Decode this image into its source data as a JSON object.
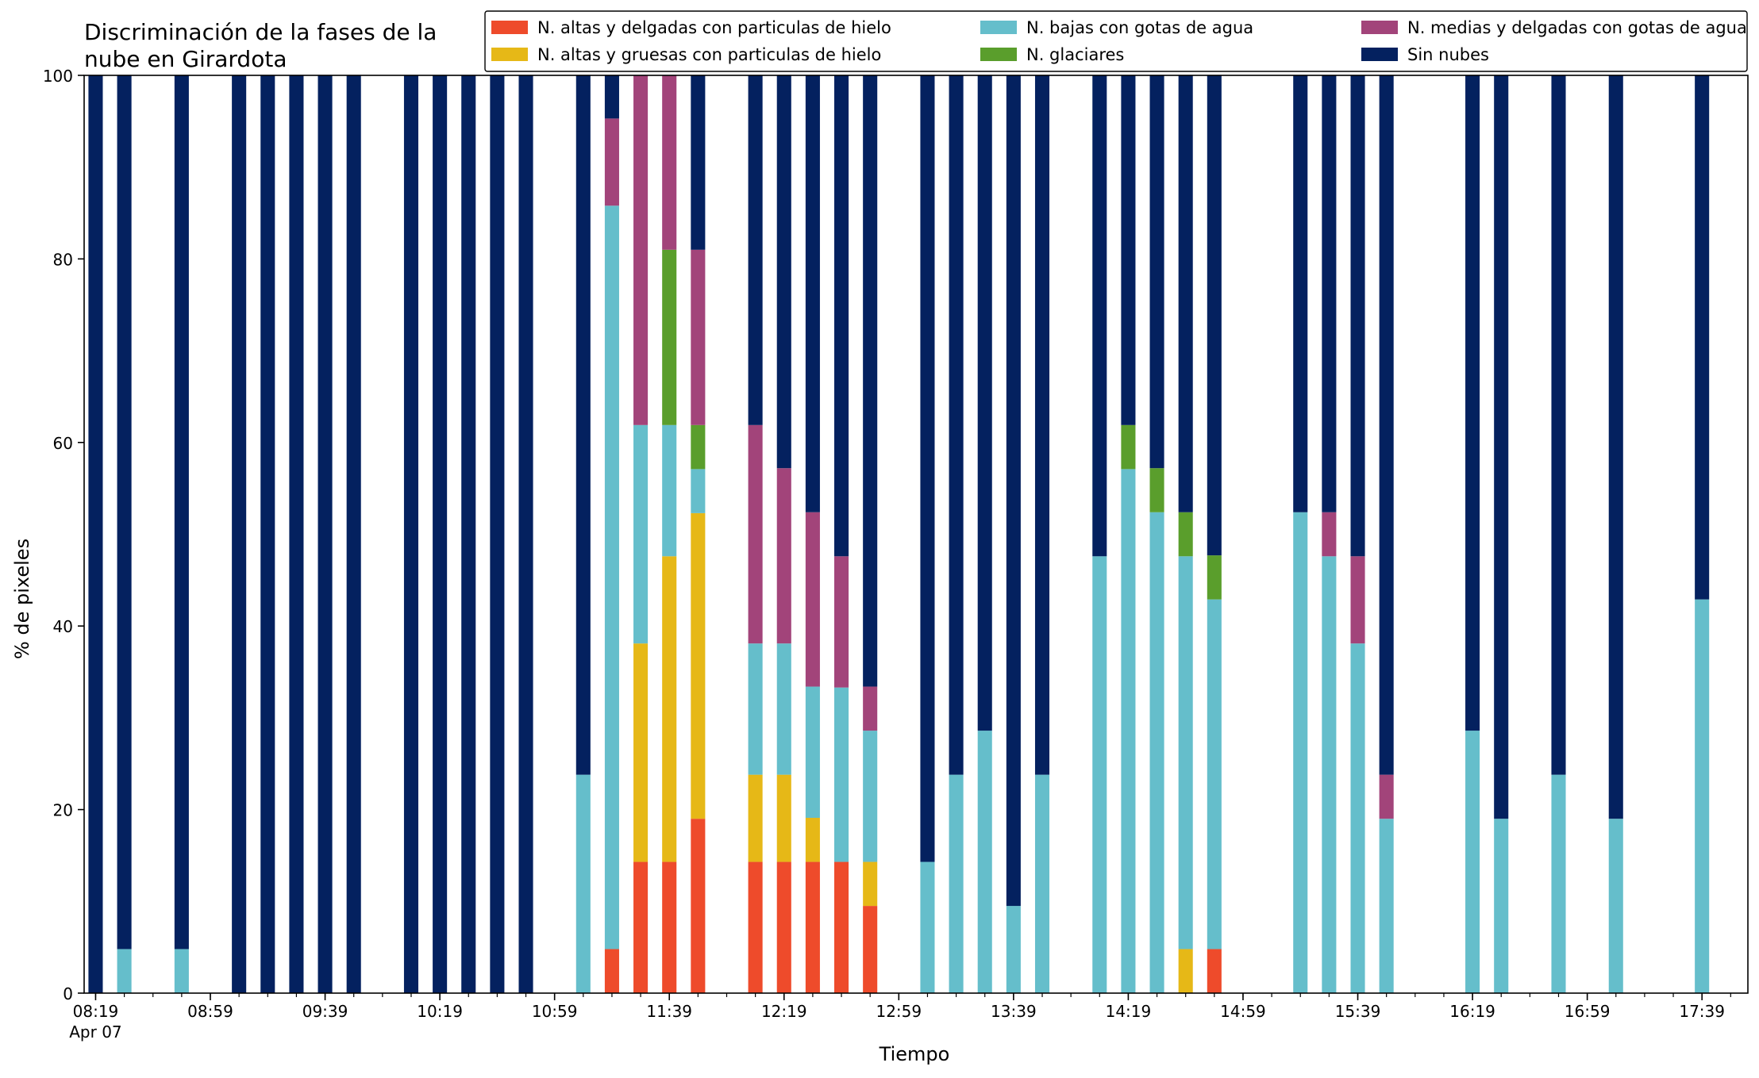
{
  "chart_data": {
    "type": "bar",
    "stacked": true,
    "title": "Discriminación de la fases de la\nnube en Girardota",
    "xlabel": "Tiempo",
    "ylabel": "% de pixeles",
    "ylim": [
      0,
      100
    ],
    "yticks": [
      0,
      20,
      40,
      60,
      80,
      100
    ],
    "xlim": [
      "08:15",
      "17:55"
    ],
    "date_label": "Apr 07",
    "major_ticks": [
      "08:19",
      "08:59",
      "09:39",
      "10:19",
      "10:59",
      "11:39",
      "12:19",
      "12:59",
      "13:39",
      "14:19",
      "14:59",
      "15:39",
      "16:19",
      "16:59",
      "17:39"
    ],
    "minor_tick_step_minutes": 10,
    "legend_position": "top-right",
    "grid": false,
    "series": [
      {
        "name": "N. altas y delgadas con particulas de hielo",
        "color": "#EE4B2B"
      },
      {
        "name": "N. altas y gruesas con particulas de hielo",
        "color": "#E6B817"
      },
      {
        "name": "N. bajas con gotas de agua",
        "color": "#65BECB"
      },
      {
        "name": "N. glaciares",
        "color": "#5A9E2C"
      },
      {
        "name": "N. medias y delgadas con gotas de agua",
        "color": "#A2447A"
      },
      {
        "name": "Sin nubes",
        "color": "#04215F"
      }
    ],
    "legend_order": [
      0,
      2,
      4,
      1,
      3,
      5
    ],
    "x": [
      "08:19",
      "08:29",
      "08:49",
      "09:09",
      "09:19",
      "09:29",
      "09:39",
      "09:49",
      "10:09",
      "10:19",
      "10:29",
      "10:39",
      "10:49",
      "11:09",
      "11:19",
      "11:29",
      "11:39",
      "11:49",
      "12:09",
      "12:19",
      "12:29",
      "12:39",
      "12:49",
      "13:09",
      "13:19",
      "13:29",
      "13:39",
      "13:49",
      "14:09",
      "14:19",
      "14:29",
      "14:39",
      "14:49",
      "15:19",
      "15:29",
      "15:39",
      "15:49",
      "16:19",
      "16:29",
      "16:49",
      "17:09",
      "17:39"
    ],
    "values": [
      [
        0,
        0,
        0,
        0,
        0,
        100
      ],
      [
        0,
        0,
        4.8,
        0,
        0,
        95.2
      ],
      [
        0,
        0,
        4.8,
        0,
        0,
        95.2
      ],
      [
        0,
        0,
        0,
        0,
        0,
        100
      ],
      [
        0,
        0,
        0,
        0,
        0,
        100
      ],
      [
        0,
        0,
        0,
        0,
        0,
        100
      ],
      [
        0,
        0,
        0,
        0,
        0,
        100
      ],
      [
        0,
        0,
        0,
        0,
        0,
        100
      ],
      [
        0,
        0,
        0,
        0,
        0,
        100
      ],
      [
        0,
        0,
        0,
        0,
        0,
        100
      ],
      [
        0,
        0,
        0,
        0,
        0,
        100
      ],
      [
        0,
        0,
        0,
        0,
        0,
        100
      ],
      [
        0,
        0,
        0,
        0,
        0,
        100
      ],
      [
        0,
        0,
        23.8,
        0,
        0,
        76.2
      ],
      [
        4.8,
        0,
        81,
        0,
        9.5,
        4.7
      ],
      [
        14.3,
        23.8,
        23.8,
        0,
        38.1,
        0
      ],
      [
        14.3,
        33.3,
        14.3,
        19.1,
        19,
        0
      ],
      [
        19,
        33.3,
        4.8,
        4.8,
        19.1,
        19
      ],
      [
        14.3,
        9.5,
        14.3,
        0,
        23.8,
        38.1
      ],
      [
        14.3,
        9.5,
        14.3,
        0,
        19.1,
        42.8
      ],
      [
        14.3,
        4.8,
        14.3,
        0,
        19,
        47.6
      ],
      [
        14.3,
        0,
        19,
        0,
        14.3,
        52.4
      ],
      [
        9.5,
        4.8,
        14.3,
        0,
        4.8,
        66.6
      ],
      [
        0,
        0,
        14.3,
        0,
        0,
        85.7
      ],
      [
        0,
        0,
        23.8,
        0,
        0,
        76.2
      ],
      [
        0,
        0,
        28.6,
        0,
        0,
        71.4
      ],
      [
        0,
        0,
        9.5,
        0,
        0,
        90.5
      ],
      [
        0,
        0,
        23.8,
        0,
        0,
        76.2
      ],
      [
        0,
        0,
        47.6,
        0,
        0,
        52.4
      ],
      [
        0,
        0,
        57.1,
        4.8,
        0,
        38.1
      ],
      [
        0,
        0,
        52.4,
        4.8,
        0,
        42.8
      ],
      [
        0,
        4.8,
        42.8,
        4.8,
        0,
        47.6
      ],
      [
        4.8,
        0,
        38.1,
        4.8,
        0,
        52.3
      ],
      [
        0,
        0,
        52.4,
        0,
        0,
        47.6
      ],
      [
        0,
        0,
        47.6,
        0,
        4.8,
        47.6
      ],
      [
        0,
        0,
        38.1,
        0,
        9.5,
        52.4
      ],
      [
        0,
        0,
        19,
        0,
        4.8,
        76.2
      ],
      [
        0,
        0,
        28.6,
        0,
        0,
        71.4
      ],
      [
        0,
        0,
        19,
        0,
        0,
        81
      ],
      [
        0,
        0,
        23.8,
        0,
        0,
        76.2
      ],
      [
        0,
        0,
        19,
        0,
        0,
        81
      ],
      [
        0,
        0,
        42.9,
        0,
        0,
        57.1
      ]
    ]
  }
}
